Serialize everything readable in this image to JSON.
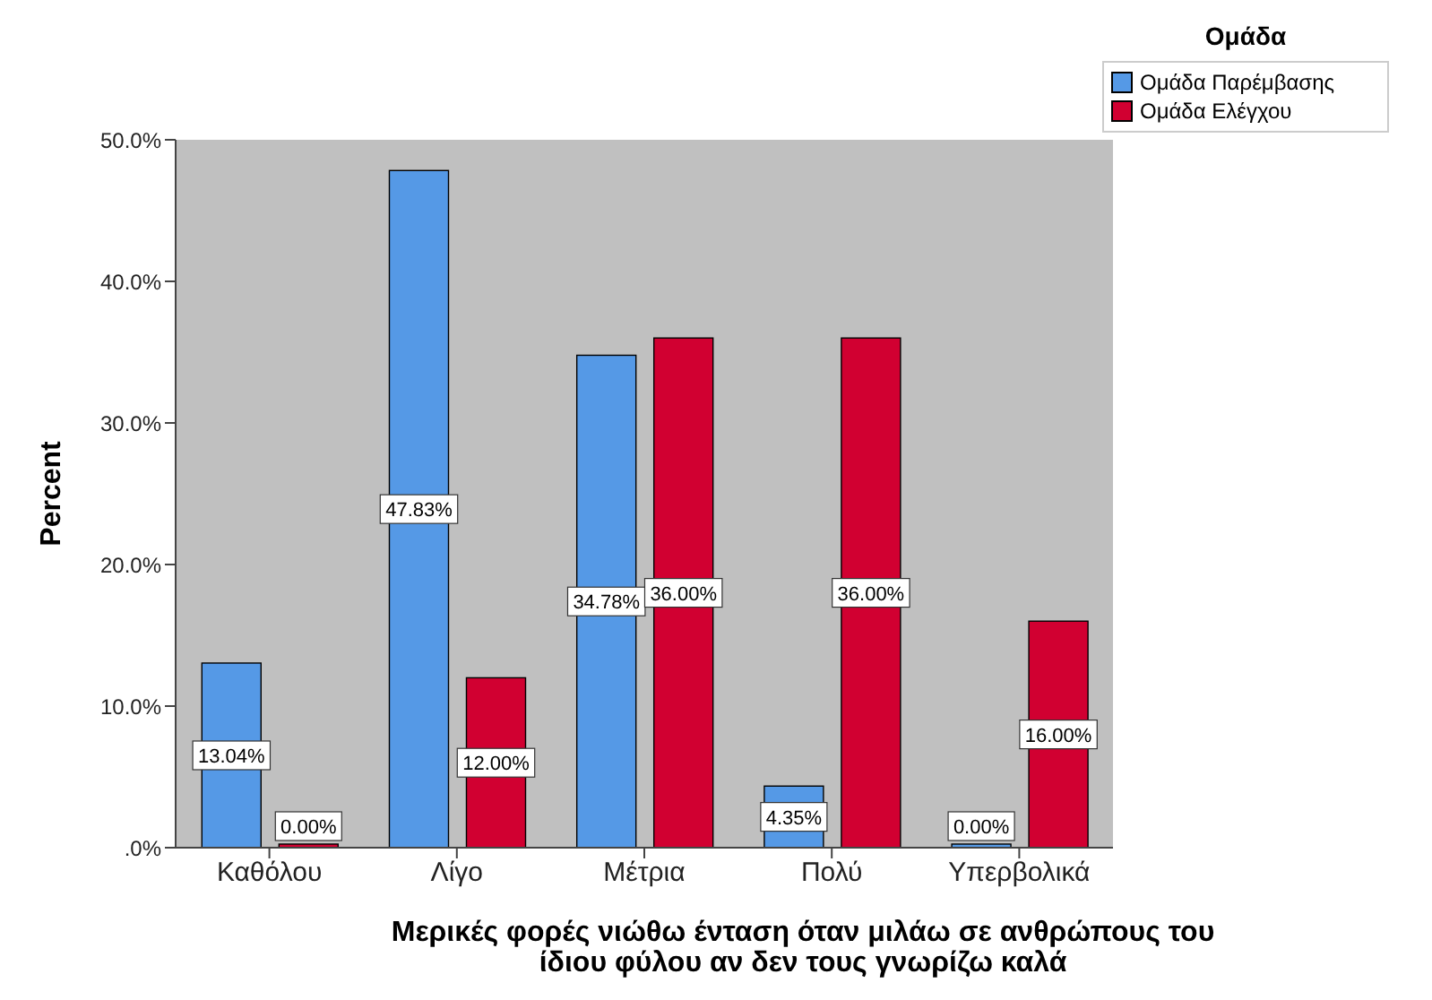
{
  "chart_data": {
    "type": "bar",
    "xlabel": "Μερικές φορές νιώθω ένταση όταν μιλάω σε ανθρώπους του ίδιου φύλου αν δεν τους γνωρίζω καλά",
    "ylabel": "Percent",
    "legend_title": "Ομάδα",
    "categories": [
      "Καθόλου",
      "Λίγο",
      "Μέτρια",
      "Πολύ",
      "Υπερβολικά"
    ],
    "series": [
      {
        "name": "Ομάδα Παρέμβασης",
        "color": "#5599e6",
        "values": [
          13.04,
          47.83,
          34.78,
          4.35,
          0
        ],
        "value_labels": [
          "13.04%",
          "47.83%",
          "34.78%",
          "4.35%",
          "0.00%"
        ]
      },
      {
        "name": "Ομάδα Ελέγχου",
        "color": "#d10031",
        "values": [
          0,
          12,
          36,
          36,
          16
        ],
        "value_labels": [
          "0.00%",
          "12.00%",
          "36.00%",
          "36.00%",
          "16.00%"
        ]
      }
    ],
    "ylim": [
      0,
      50
    ],
    "yticks": [
      {
        "value": 0,
        "label": ".0%"
      },
      {
        "value": 10,
        "label": "10.0%"
      },
      {
        "value": 20,
        "label": "20.0%"
      },
      {
        "value": 30,
        "label": "30.0%"
      },
      {
        "value": 40,
        "label": "40.0%"
      },
      {
        "value": 50,
        "label": "50.0%"
      }
    ],
    "grid": false,
    "legend": "top right"
  }
}
